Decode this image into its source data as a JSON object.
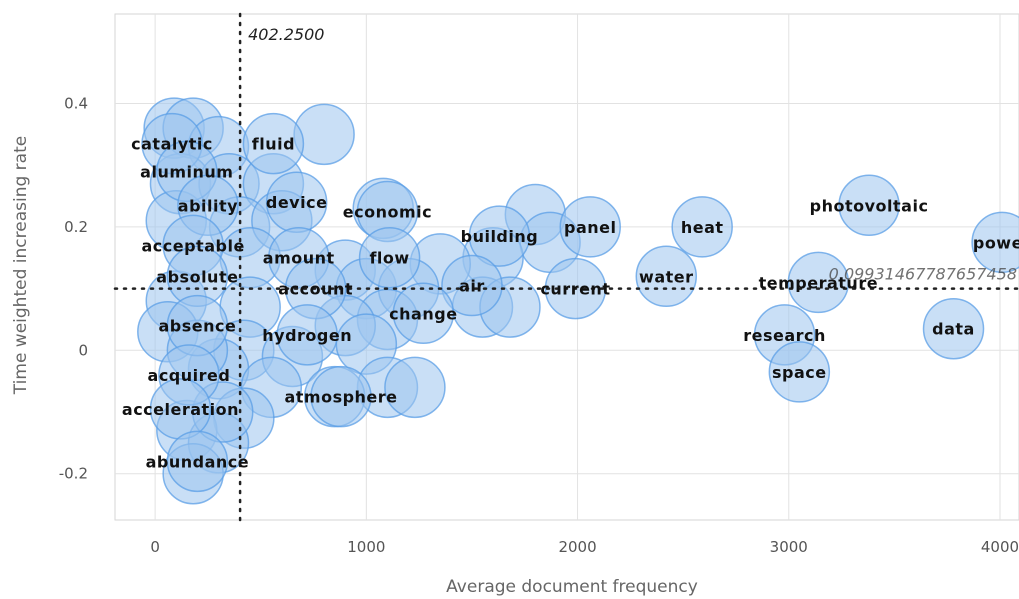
{
  "chart_data": {
    "type": "scatter",
    "xlabel": "Average document frequency",
    "ylabel": "Time weighted increasing rate",
    "xlim": [
      -190,
      4090
    ],
    "ylim": [
      -0.275,
      0.545
    ],
    "x_ticks": [
      {
        "value": 0,
        "label": "0"
      },
      {
        "value": 1000,
        "label": "1000"
      },
      {
        "value": 2000,
        "label": "2000"
      },
      {
        "value": 3000,
        "label": "3000"
      },
      {
        "value": 4000,
        "label": "4000"
      }
    ],
    "y_ticks": [
      {
        "value": -0.2,
        "label": "-0.2"
      },
      {
        "value": 0,
        "label": "0"
      },
      {
        "value": 0.2,
        "label": "0.2"
      },
      {
        "value": 0.4,
        "label": "0.4"
      }
    ],
    "grid": true,
    "reference_lines": {
      "vertical": {
        "value": 402.25,
        "label": "402.2500"
      },
      "horizontal": {
        "value": 0.1,
        "label": "0.09931467787657458"
      }
    },
    "labeled_points": [
      {
        "label": "catalytic",
        "x": 80,
        "y": 0.335
      },
      {
        "label": "fluid",
        "x": 560,
        "y": 0.335
      },
      {
        "label": "aluminum",
        "x": 150,
        "y": 0.29
      },
      {
        "label": "ability",
        "x": 250,
        "y": 0.235
      },
      {
        "label": "device",
        "x": 670,
        "y": 0.24
      },
      {
        "label": "economic",
        "x": 1100,
        "y": 0.225
      },
      {
        "label": "photovoltaic",
        "x": 3380,
        "y": 0.235
      },
      {
        "label": "building",
        "x": 1630,
        "y": 0.185
      },
      {
        "label": "panel",
        "x": 2060,
        "y": 0.2
      },
      {
        "label": "heat",
        "x": 2590,
        "y": 0.2
      },
      {
        "label": "power",
        "x": 4010,
        "y": 0.175
      },
      {
        "label": "acceptable",
        "x": 180,
        "y": 0.17
      },
      {
        "label": "amount",
        "x": 680,
        "y": 0.15
      },
      {
        "label": "flow",
        "x": 1110,
        "y": 0.15
      },
      {
        "label": "absolute",
        "x": 200,
        "y": 0.12
      },
      {
        "label": "water",
        "x": 2420,
        "y": 0.12
      },
      {
        "label": "temperature",
        "x": 3140,
        "y": 0.11
      },
      {
        "label": "air",
        "x": 1500,
        "y": 0.105
      },
      {
        "label": "current",
        "x": 1990,
        "y": 0.1
      },
      {
        "label": "account",
        "x": 760,
        "y": 0.1
      },
      {
        "label": "change",
        "x": 1270,
        "y": 0.06
      },
      {
        "label": "absence",
        "x": 200,
        "y": 0.04
      },
      {
        "label": "hydrogen",
        "x": 720,
        "y": 0.025
      },
      {
        "label": "research",
        "x": 2980,
        "y": 0.025
      },
      {
        "label": "data",
        "x": 3780,
        "y": 0.035
      },
      {
        "label": "space",
        "x": 3050,
        "y": -0.035
      },
      {
        "label": "acquired",
        "x": 160,
        "y": -0.04
      },
      {
        "label": "atmosphere",
        "x": 880,
        "y": -0.075
      },
      {
        "label": "acceleration",
        "x": 120,
        "y": -0.095
      },
      {
        "label": "abundance",
        "x": 200,
        "y": -0.18
      }
    ],
    "unlabeled_points": [
      {
        "x": 90,
        "y": 0.36
      },
      {
        "x": 180,
        "y": 0.36
      },
      {
        "x": 300,
        "y": 0.33
      },
      {
        "x": 800,
        "y": 0.35
      },
      {
        "x": 120,
        "y": 0.27
      },
      {
        "x": 350,
        "y": 0.27
      },
      {
        "x": 560,
        "y": 0.27
      },
      {
        "x": 100,
        "y": 0.21
      },
      {
        "x": 400,
        "y": 0.2
      },
      {
        "x": 600,
        "y": 0.21
      },
      {
        "x": 1080,
        "y": 0.23
      },
      {
        "x": 1800,
        "y": 0.22
      },
      {
        "x": 1870,
        "y": 0.175
      },
      {
        "x": 1600,
        "y": 0.15
      },
      {
        "x": 1350,
        "y": 0.14
      },
      {
        "x": 900,
        "y": 0.13
      },
      {
        "x": 450,
        "y": 0.15
      },
      {
        "x": 1000,
        "y": 0.1
      },
      {
        "x": 1200,
        "y": 0.1
      },
      {
        "x": 1100,
        "y": 0.05
      },
      {
        "x": 1550,
        "y": 0.07
      },
      {
        "x": 1680,
        "y": 0.07
      },
      {
        "x": 900,
        "y": 0.04
      },
      {
        "x": 1000,
        "y": 0.01
      },
      {
        "x": 450,
        "y": 0.07
      },
      {
        "x": 100,
        "y": 0.08
      },
      {
        "x": 60,
        "y": 0.03
      },
      {
        "x": 420,
        "y": 0.0
      },
      {
        "x": 650,
        "y": -0.01
      },
      {
        "x": 300,
        "y": -0.03
      },
      {
        "x": 550,
        "y": -0.06
      },
      {
        "x": 1100,
        "y": -0.06
      },
      {
        "x": 1230,
        "y": -0.06
      },
      {
        "x": 850,
        "y": -0.075
      },
      {
        "x": 420,
        "y": -0.11
      },
      {
        "x": 150,
        "y": -0.13
      },
      {
        "x": 300,
        "y": -0.15
      },
      {
        "x": 180,
        "y": -0.2
      },
      {
        "x": 320,
        "y": -0.1
      },
      {
        "x": 200,
        "y": 0.0
      }
    ]
  }
}
